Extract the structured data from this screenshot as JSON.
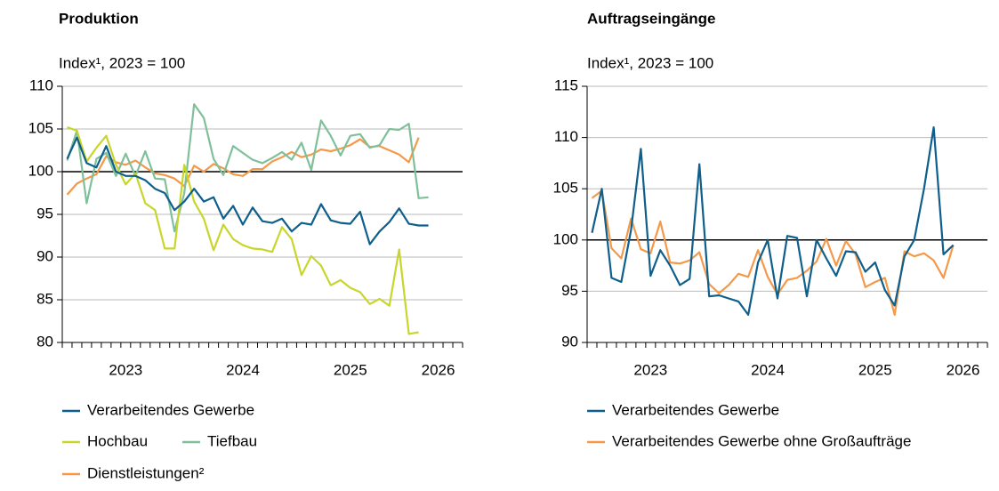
{
  "chart_data": [
    {
      "type": "line",
      "title": "Produktion",
      "y_label": "Index¹, 2023 = 100",
      "categories": [
        null,
        null,
        null,
        null,
        null,
        null,
        "2023",
        null,
        null,
        null,
        null,
        null,
        null,
        null,
        null,
        null,
        null,
        null,
        "2024",
        null,
        null,
        null,
        null,
        null,
        null,
        null,
        null,
        null,
        null,
        "2025",
        null,
        null,
        null,
        null,
        null,
        null,
        null,
        null,
        "2026",
        null,
        null
      ],
      "ylim": [
        80,
        110
      ],
      "yticks": [
        80,
        85,
        90,
        95,
        100,
        105,
        110
      ],
      "grid": true,
      "baseline": 100,
      "series": [
        {
          "name": "Verarbeitendes Gewerbe",
          "color": "#0e5f8c",
          "values": [
            101.5,
            104,
            101,
            100.5,
            103,
            100,
            99.5,
            99.5,
            99,
            98,
            97.5,
            95.5,
            96.5,
            98,
            96.5,
            97,
            94.5,
            96,
            93.8,
            95.8,
            94.2,
            94,
            94.5,
            93,
            94,
            93.8,
            96.2,
            94.3,
            94,
            93.9,
            95.3,
            91.5,
            93,
            94.1,
            95.7,
            93.9,
            93.7,
            93.7,
            null,
            null,
            null
          ]
        },
        {
          "name": "Hochbau",
          "color": "#c8d62b",
          "values": [
            105.2,
            104.8,
            101.2,
            102.8,
            104.2,
            100.8,
            98.5,
            99.8,
            96.3,
            95.5,
            91,
            91,
            100.8,
            96.5,
            94.5,
            90.8,
            93.8,
            92.1,
            91.4,
            91,
            90.9,
            90.6,
            93.5,
            92.1,
            87.9,
            90.1,
            89,
            86.7,
            87.3,
            86.4,
            85.9,
            84.5,
            85.1,
            84.3,
            90.9,
            81,
            81.2,
            null,
            null,
            null,
            null
          ]
        },
        {
          "name": "Tiefbau",
          "color": "#7fc09a",
          "values": [
            101.3,
            104.8,
            96.3,
            101.5,
            102.2,
            99.5,
            102.1,
            99.5,
            102.4,
            99.2,
            99.1,
            93,
            97.5,
            107.9,
            106.3,
            101.5,
            99.6,
            103,
            102.2,
            101.4,
            101,
            101.6,
            102.3,
            101.4,
            103.4,
            100.2,
            106,
            104.2,
            101.9,
            104.2,
            104.4,
            102.8,
            103.1,
            105,
            104.9,
            105.6,
            96.9,
            97,
            null,
            null,
            null
          ]
        },
        {
          "name": "Dienstleistungen²",
          "color": "#f4994a",
          "values": [
            97.3,
            98.6,
            99.2,
            99.7,
            101.8,
            101.1,
            100.8,
            101.3,
            100.5,
            99.8,
            99.6,
            99.2,
            98.3,
            100.7,
            100,
            100.9,
            100.4,
            99.7,
            99.5,
            100.3,
            100.3,
            101.2,
            101.7,
            102.3,
            101.7,
            102,
            102.6,
            102.4,
            102.7,
            103.1,
            103.8,
            102.9,
            103,
            102.5,
            102,
            101.1,
            104,
            null,
            null,
            null,
            null
          ]
        }
      ]
    },
    {
      "type": "line",
      "title": "Auftragseingänge",
      "y_label": "Index¹, 2023 = 100",
      "categories": [
        null,
        null,
        null,
        null,
        null,
        null,
        "2023",
        null,
        null,
        null,
        null,
        null,
        null,
        null,
        null,
        null,
        null,
        null,
        "2024",
        null,
        null,
        null,
        null,
        null,
        null,
        null,
        null,
        null,
        null,
        "2025",
        null,
        null,
        null,
        null,
        null,
        null,
        null,
        null,
        "2026",
        null,
        null
      ],
      "ylim": [
        90,
        115
      ],
      "yticks": [
        90,
        95,
        100,
        105,
        110,
        115
      ],
      "grid": true,
      "baseline": 100,
      "series": [
        {
          "name": "Verarbeitendes Gewerbe",
          "color": "#0e5f8c",
          "values": [
            100.7,
            105,
            96.3,
            95.9,
            101,
            108.9,
            96.5,
            99,
            97.5,
            95.6,
            96.2,
            107.4,
            94.5,
            94.6,
            94.3,
            94,
            92.7,
            97.8,
            100,
            94.3,
            100.4,
            100.2,
            94.5,
            100,
            98.2,
            96.5,
            98.9,
            98.8,
            96.9,
            97.8,
            95.1,
            93.6,
            98.4,
            100,
            105,
            111,
            98.6,
            99.5,
            null,
            null,
            null
          ]
        },
        {
          "name": "Verarbeitendes Gewerbe ohne Großaufträge",
          "color": "#f4994a",
          "values": [
            104.1,
            104.8,
            99.2,
            98.2,
            102.1,
            99.1,
            98.7,
            101.8,
            97.8,
            97.7,
            98,
            98.8,
            95.7,
            94.8,
            95.6,
            96.7,
            96.4,
            99,
            96.4,
            94.7,
            96.1,
            96.3,
            97,
            97.9,
            100.1,
            97.5,
            99.9,
            98.6,
            95.4,
            95.9,
            96.3,
            92.7,
            98.9,
            98.4,
            98.7,
            98,
            96.3,
            99.5,
            null,
            null,
            null
          ]
        }
      ]
    }
  ]
}
